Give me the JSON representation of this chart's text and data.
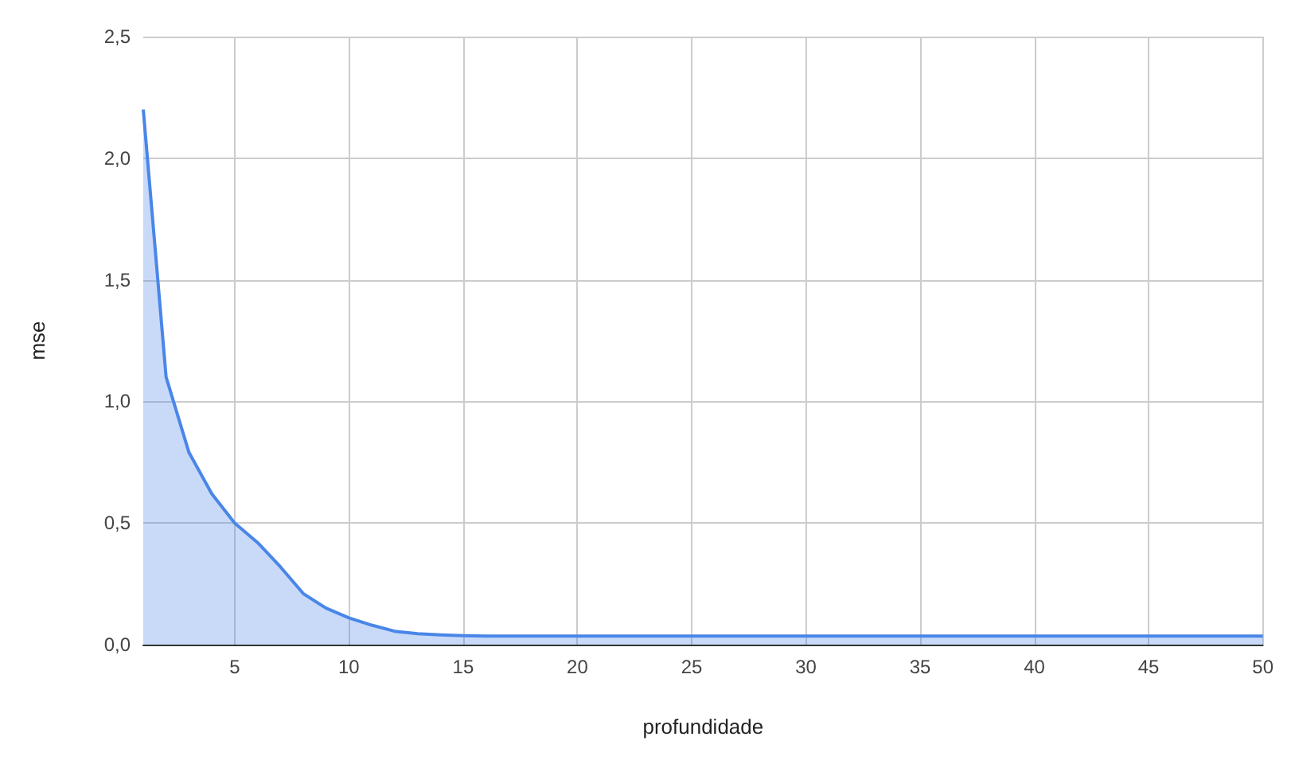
{
  "chart_data": {
    "type": "area",
    "xlabel": "profundidade",
    "ylabel": "mse",
    "x": [
      1,
      2,
      3,
      4,
      5,
      6,
      7,
      8,
      9,
      10,
      11,
      12,
      13,
      14,
      15,
      16,
      17,
      18,
      19,
      20,
      21,
      22,
      23,
      24,
      25,
      26,
      27,
      28,
      29,
      30,
      31,
      32,
      33,
      34,
      35,
      36,
      37,
      38,
      39,
      40,
      41,
      42,
      43,
      44,
      45,
      46,
      47,
      48,
      49,
      50
    ],
    "series": [
      {
        "color": "#4a86e8",
        "values": [
          2.2,
          1.1,
          0.79,
          0.62,
          0.5,
          0.42,
          0.32,
          0.21,
          0.15,
          0.11,
          0.08,
          0.055,
          0.045,
          0.04,
          0.037,
          0.035,
          0.035,
          0.035,
          0.035,
          0.035,
          0.035,
          0.035,
          0.035,
          0.035,
          0.035,
          0.035,
          0.035,
          0.035,
          0.035,
          0.035,
          0.035,
          0.035,
          0.035,
          0.035,
          0.035,
          0.035,
          0.035,
          0.035,
          0.035,
          0.035,
          0.035,
          0.035,
          0.035,
          0.035,
          0.035,
          0.035,
          0.035,
          0.035,
          0.035,
          0.035
        ]
      }
    ],
    "xlim": [
      1,
      50
    ],
    "xticks": [
      5,
      10,
      15,
      20,
      25,
      30,
      35,
      40,
      45,
      50
    ],
    "ylim": [
      0,
      2.5
    ],
    "yticks": [
      {
        "value": 0,
        "label": "0,0"
      },
      {
        "value": 0.5,
        "label": "0,5"
      },
      {
        "value": 1,
        "label": "1,0"
      },
      {
        "value": 1.5,
        "label": "1,5"
      },
      {
        "value": 2,
        "label": "2,0"
      },
      {
        "value": 2.5,
        "label": "2,5"
      }
    ],
    "grid": true,
    "marker": "none",
    "line_style": "solid"
  }
}
